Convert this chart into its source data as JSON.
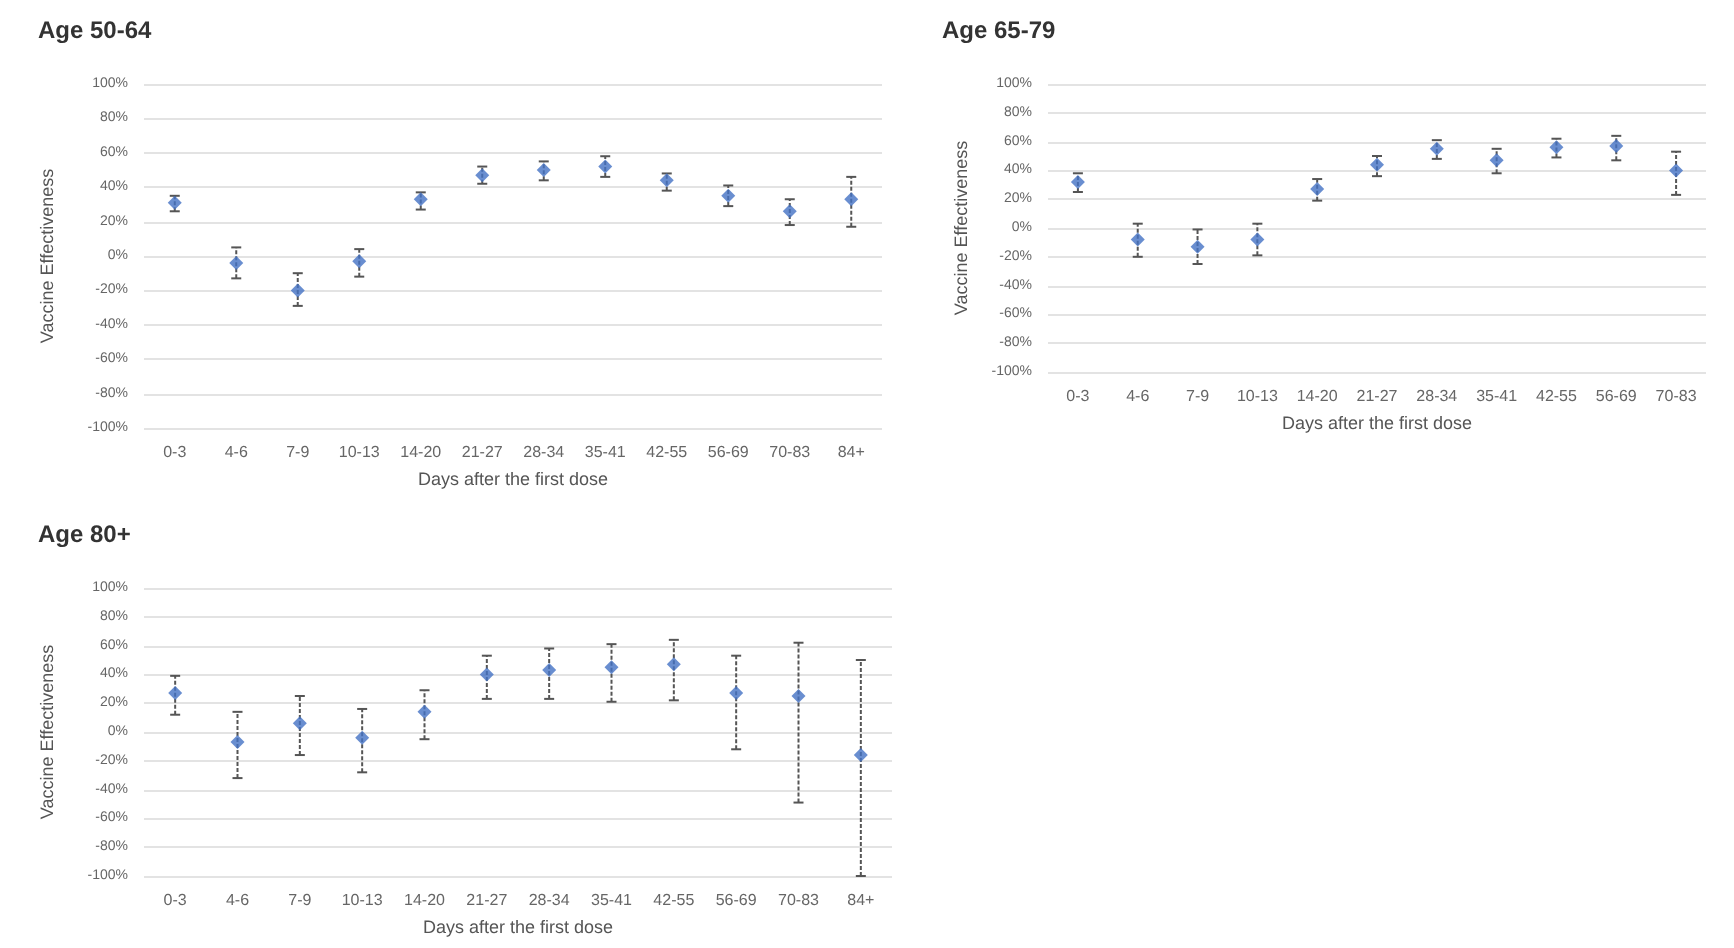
{
  "chart_data": [
    {
      "type": "scatter",
      "title": "Age 50-64",
      "xlabel": "Days after the first dose",
      "ylabel": "Vaccine Effectiveness",
      "categories": [
        "0-3",
        "4-6",
        "7-9",
        "10-13",
        "14-20",
        "21-27",
        "28-34",
        "35-41",
        "42-55",
        "56-69",
        "70-83",
        "84+"
      ],
      "series": [
        {
          "color": "#4472c4",
          "values": [
            31,
            -4,
            -20,
            -3,
            33,
            47,
            50,
            52,
            44,
            35,
            26,
            33
          ],
          "errors": [
            [
              26,
              35
            ],
            [
              -13,
              5
            ],
            [
              -29,
              -10
            ],
            [
              -12,
              4
            ],
            [
              27,
              37
            ],
            [
              42,
              52
            ],
            [
              44,
              55
            ],
            [
              46,
              58
            ],
            [
              38,
              48
            ],
            [
              29,
              41
            ],
            [
              18,
              33
            ],
            [
              17,
              46
            ]
          ]
        }
      ],
      "ylim": [
        -100,
        100
      ],
      "yticks": [
        {
          "value": -100,
          "label": "-100%"
        },
        {
          "value": -80,
          "label": "-80%"
        },
        {
          "value": -60,
          "label": "-60%"
        },
        {
          "value": -40,
          "label": "-40%"
        },
        {
          "value": -20,
          "label": "-20%"
        },
        {
          "value": 0,
          "label": "0%"
        },
        {
          "value": 20,
          "label": "20%"
        },
        {
          "value": 40,
          "label": "40%"
        },
        {
          "value": 60,
          "label": "60%"
        },
        {
          "value": 80,
          "label": "80%"
        },
        {
          "value": 100,
          "label": "100%"
        }
      ],
      "grid": "y",
      "marker": "diamond"
    },
    {
      "type": "scatter",
      "title": "Age 65-79",
      "xlabel": "Days after the first dose",
      "ylabel": "Vaccine Effectiveness",
      "categories": [
        "0-3",
        "4-6",
        "7-9",
        "10-13",
        "14-20",
        "21-27",
        "28-34",
        "35-41",
        "42-55",
        "56-69",
        "70-83"
      ],
      "series": [
        {
          "color": "#4472c4",
          "values": [
            32,
            -8,
            -13,
            -8,
            27,
            44,
            55,
            47,
            56,
            57,
            40
          ],
          "errors": [
            [
              25,
              38
            ],
            [
              -20,
              3
            ],
            [
              -25,
              -1
            ],
            [
              -19,
              3
            ],
            [
              19,
              34
            ],
            [
              36,
              50
            ],
            [
              48,
              61
            ],
            [
              38,
              55
            ],
            [
              49,
              62
            ],
            [
              47,
              64
            ],
            [
              23,
              53
            ]
          ]
        }
      ],
      "ylim": [
        -100,
        100
      ],
      "yticks": [
        {
          "value": -100,
          "label": "-100%"
        },
        {
          "value": -80,
          "label": "-80%"
        },
        {
          "value": -60,
          "label": "-60%"
        },
        {
          "value": -40,
          "label": "-40%"
        },
        {
          "value": -20,
          "label": "-20%"
        },
        {
          "value": 0,
          "label": "0%"
        },
        {
          "value": 20,
          "label": "20%"
        },
        {
          "value": 40,
          "label": "40%"
        },
        {
          "value": 60,
          "label": "60%"
        },
        {
          "value": 80,
          "label": "80%"
        },
        {
          "value": 100,
          "label": "100%"
        }
      ],
      "grid": "y",
      "marker": "diamond"
    },
    {
      "type": "scatter",
      "title": "Age 80+",
      "xlabel": "Days after the first dose",
      "ylabel": "Vaccine Effectiveness",
      "categories": [
        "0-3",
        "4-6",
        "7-9",
        "10-13",
        "14-20",
        "21-27",
        "28-34",
        "35-41",
        "42-55",
        "56-69",
        "70-83",
        "84+"
      ],
      "series": [
        {
          "color": "#4472c4",
          "values": [
            27,
            -7,
            6,
            -4,
            14,
            40,
            43,
            45,
            47,
            27,
            25,
            -16
          ],
          "errors": [
            [
              12,
              39
            ],
            [
              -32,
              14
            ],
            [
              -16,
              25
            ],
            [
              -28,
              16
            ],
            [
              -5,
              29
            ],
            [
              23,
              53
            ],
            [
              23,
              58
            ],
            [
              21,
              61
            ],
            [
              22,
              64
            ],
            [
              -12,
              53
            ],
            [
              -49,
              62
            ],
            [
              -100,
              50
            ]
          ]
        }
      ],
      "ylim": [
        -100,
        100
      ],
      "yticks": [
        {
          "value": -100,
          "label": "-100%"
        },
        {
          "value": -80,
          "label": "-80%"
        },
        {
          "value": -60,
          "label": "-60%"
        },
        {
          "value": -40,
          "label": "-40%"
        },
        {
          "value": -20,
          "label": "-20%"
        },
        {
          "value": 0,
          "label": "0%"
        },
        {
          "value": 20,
          "label": "20%"
        },
        {
          "value": 40,
          "label": "40%"
        },
        {
          "value": 60,
          "label": "60%"
        },
        {
          "value": 80,
          "label": "80%"
        },
        {
          "value": 100,
          "label": "100%"
        }
      ],
      "grid": "y",
      "marker": "diamond"
    }
  ]
}
